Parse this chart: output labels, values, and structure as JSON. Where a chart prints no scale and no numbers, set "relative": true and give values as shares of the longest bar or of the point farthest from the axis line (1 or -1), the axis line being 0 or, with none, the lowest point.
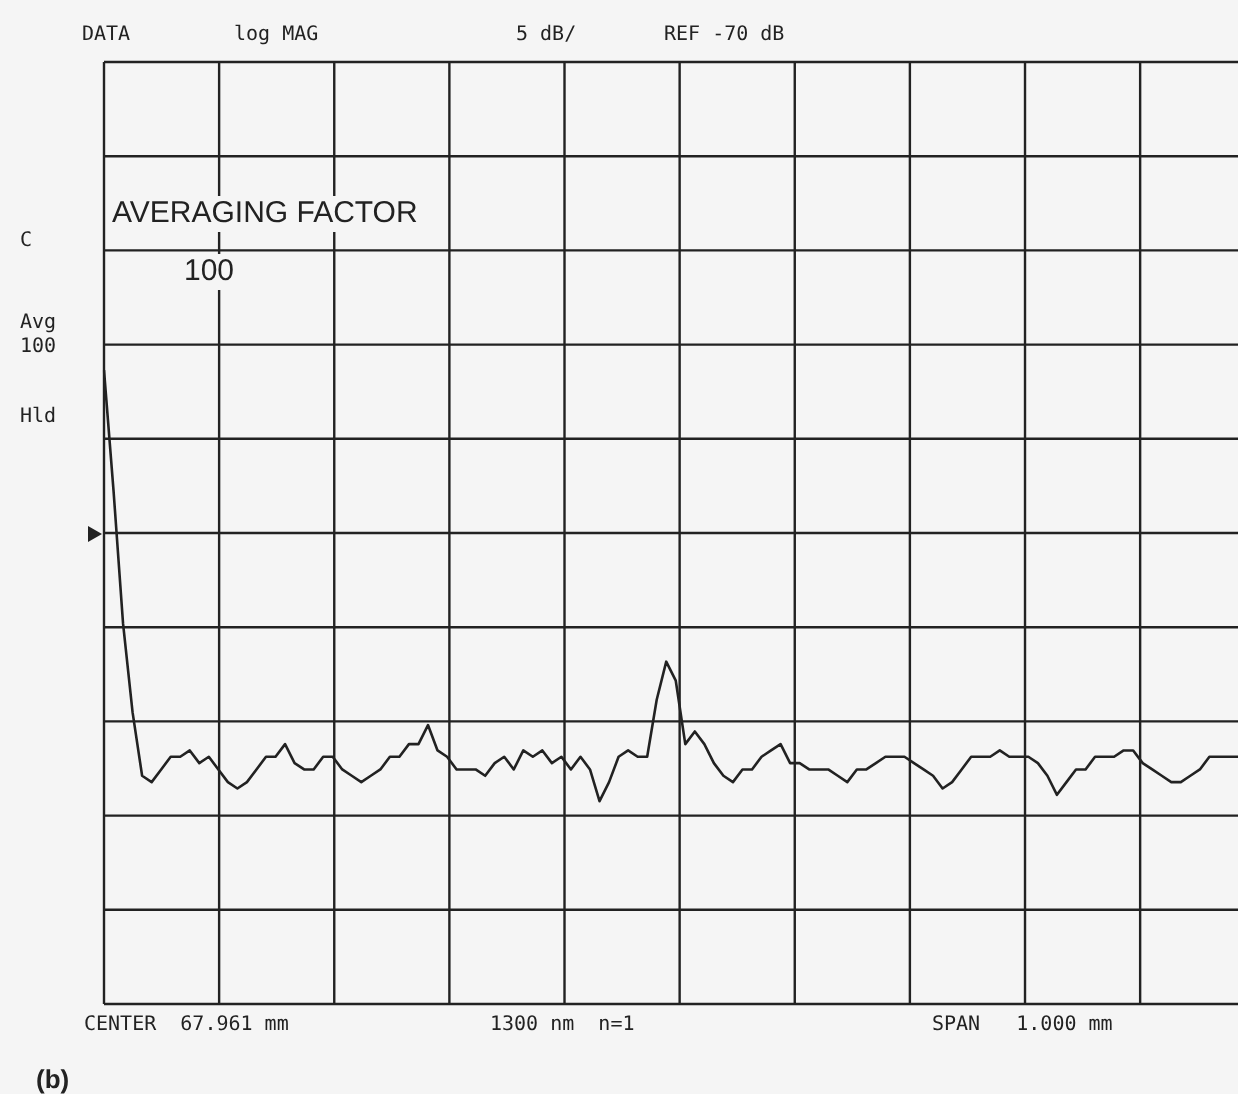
{
  "chart_data": {
    "type": "line",
    "relative": true,
    "grid": true,
    "marker": "none",
    "line_style": "solid",
    "annotations": [
      "DATA",
      "log MAG",
      "5 dB/",
      "REF -70 dB",
      "C",
      "Avg\n100",
      "Hld",
      "AVERAGING FACTOR",
      "100",
      "CENTER  67.961 mm",
      "1300 nm  n=1",
      "SPAN   1.000 mm",
      "(b)"
    ],
    "categories": [
      null,
      null,
      null,
      null,
      null,
      null,
      null,
      null,
      null,
      null,
      null,
      null,
      null,
      null,
      null,
      null,
      null,
      null,
      null,
      null,
      null,
      null,
      null,
      null,
      null,
      null,
      null,
      null,
      null,
      null,
      null,
      null,
      null,
      null,
      null,
      null,
      null,
      null,
      null,
      null,
      null,
      null,
      null,
      null,
      null,
      null,
      null,
      null,
      null,
      null,
      null,
      null,
      null,
      null,
      null,
      null,
      null,
      null,
      null,
      null,
      null,
      null,
      null,
      null,
      null,
      null,
      null,
      null,
      null,
      null,
      null,
      null,
      null,
      null,
      null,
      null,
      null,
      null,
      null,
      null,
      null,
      null,
      null,
      null,
      null,
      null,
      null,
      null,
      null,
      null,
      null,
      null,
      null,
      null,
      null,
      null,
      null,
      null,
      null,
      null,
      null,
      null,
      null,
      null,
      null,
      null,
      null,
      null,
      null,
      null,
      null,
      null,
      null,
      null,
      null,
      null,
      null,
      null,
      null,
      null
    ],
    "series": [
      {
        "color": "#222222",
        "values": [
          1.0,
          0.81,
          0.6,
          0.46,
          0.36,
          0.35,
          0.37,
          0.39,
          0.39,
          0.4,
          0.38,
          0.39,
          0.37,
          0.35,
          0.34,
          0.35,
          0.37,
          0.39,
          0.39,
          0.41,
          0.38,
          0.37,
          0.37,
          0.39,
          0.39,
          0.37,
          0.36,
          0.35,
          0.36,
          0.37,
          0.39,
          0.39,
          0.41,
          0.41,
          0.44,
          0.4,
          0.39,
          0.37,
          0.37,
          0.37,
          0.36,
          0.38,
          0.39,
          0.37,
          0.4,
          0.39,
          0.4,
          0.38,
          0.39,
          0.37,
          0.39,
          0.37,
          0.32,
          0.35,
          0.39,
          0.4,
          0.39,
          0.39,
          0.48,
          0.54,
          0.51,
          0.41,
          0.43,
          0.41,
          0.38,
          0.36,
          0.35,
          0.37,
          0.37,
          0.39,
          0.4,
          0.41,
          0.38,
          0.38,
          0.37,
          0.37,
          0.37,
          0.36,
          0.35,
          0.37,
          0.37,
          0.38,
          0.39,
          0.39,
          0.39,
          0.38,
          0.37,
          0.36,
          0.34,
          0.35,
          0.37,
          0.39,
          0.39,
          0.39,
          0.4,
          0.39,
          0.39,
          0.39,
          0.38,
          0.36,
          0.33,
          0.35,
          0.37,
          0.37,
          0.39,
          0.39,
          0.39,
          0.4,
          0.4,
          0.38,
          0.37,
          0.36,
          0.35,
          0.35,
          0.36,
          0.37,
          0.39,
          0.39,
          0.39,
          0.39
        ]
      }
    ]
  }
}
